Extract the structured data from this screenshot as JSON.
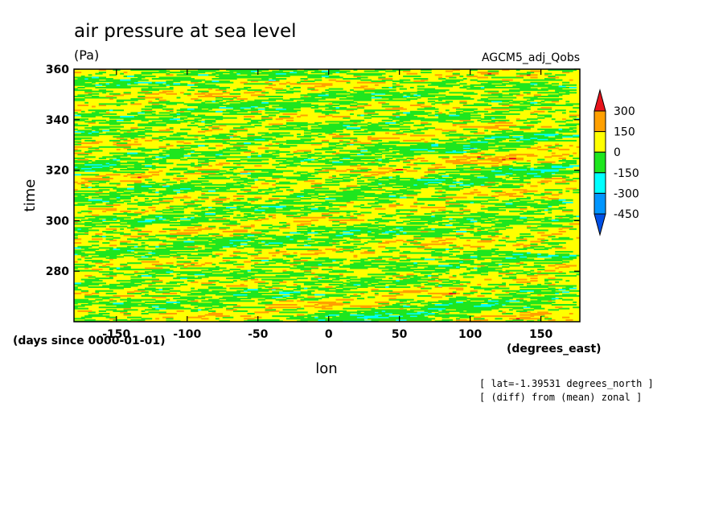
{
  "chart_data": {
    "type": "heatmap",
    "title": "air pressure at sea level",
    "units": "(Pa)",
    "source": "AGCM5_adj_Qobs",
    "xlabel": "lon",
    "xunits": "(degrees_east)",
    "ylabel": "time",
    "yunits": "(days since 0000-01-01)",
    "xlim": [
      -180,
      177.5
    ],
    "ylim": [
      260,
      360
    ],
    "xticks": [
      -150,
      -100,
      -50,
      0,
      50,
      100,
      150
    ],
    "yticks": [
      280,
      300,
      320,
      340,
      360
    ],
    "notes": [
      "[ lat=-1.39531 degrees_north ]",
      "[ (diff) from (mean) zonal ]"
    ],
    "colorbar": {
      "levels": [
        300,
        150,
        0,
        -150,
        -300,
        -450
      ],
      "colors": [
        "#e8141c",
        "#ffa000",
        "#ffff00",
        "#1ee61e",
        "#00ffff",
        "#0096ff",
        "#0050e6"
      ],
      "extend": "both"
    }
  }
}
